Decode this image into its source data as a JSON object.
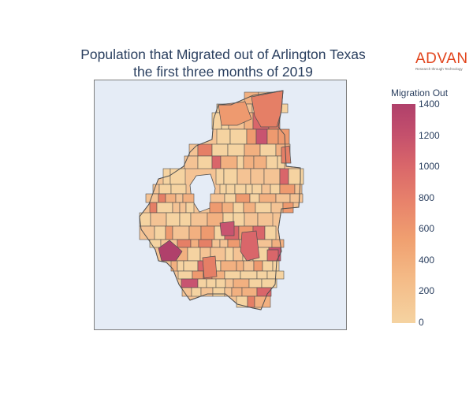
{
  "title": {
    "line1": "Population that Migrated out of Arlington Texas",
    "line2": "the first three months of 2019"
  },
  "logo": {
    "name": "ADVAN",
    "tagline": "Research through Technology"
  },
  "colorbar": {
    "title": "Migration Out",
    "ticks": [
      "0",
      "200",
      "400",
      "600",
      "800",
      "1000",
      "1200",
      "1400"
    ],
    "min": 0,
    "max": 1400,
    "colors": {
      "low": "#f5d3a1",
      "mid": "#e8836b",
      "high": "#b0406b"
    }
  },
  "map": {
    "background": "#e5ecf6",
    "boundary_color": "#505050",
    "region_colors": [
      "#f5d3a1",
      "#f4c394",
      "#f2b080",
      "#ee9a6f",
      "#e57f66",
      "#d9666a",
      "#c85470",
      "#b0406b"
    ]
  }
}
